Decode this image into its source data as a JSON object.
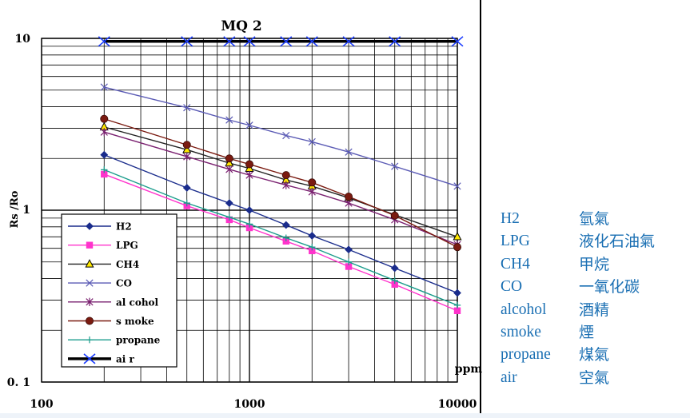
{
  "chart_data": {
    "type": "line",
    "title": "MQ 2",
    "ylabel": "Rs /Ro",
    "xunit": "ppm",
    "xscale": "log",
    "yscale": "log",
    "xlim": [
      100,
      10000
    ],
    "ylim": [
      0.1,
      10
    ],
    "xticks": [
      "100",
      "1000",
      "10000"
    ],
    "yticks": [
      "0. 1",
      "1",
      "10"
    ],
    "grid": true,
    "legend_position": "lower-left",
    "x": [
      200,
      500,
      800,
      1000,
      1500,
      2000,
      3000,
      5000,
      10000
    ],
    "series": [
      {
        "name": "H2",
        "color": "#1a2c8c",
        "marker": "diamond",
        "values": [
          2.1,
          1.35,
          1.1,
          1.0,
          0.82,
          0.71,
          0.59,
          0.46,
          0.33
        ]
      },
      {
        "name": "LPG",
        "color": "#ff33cc",
        "marker": "square",
        "values": [
          1.62,
          1.06,
          0.88,
          0.79,
          0.66,
          0.58,
          0.47,
          0.37,
          0.26
        ]
      },
      {
        "name": "CH4",
        "color": "#222222",
        "marker": "triangle",
        "values": [
          3.05,
          2.25,
          1.88,
          1.75,
          1.5,
          1.38,
          1.18,
          0.94,
          0.7
        ]
      },
      {
        "name": "CO",
        "color": "#5b5bb5",
        "marker": "x",
        "values": [
          5.2,
          3.95,
          3.35,
          3.12,
          2.72,
          2.5,
          2.18,
          1.8,
          1.38
        ]
      },
      {
        "name": "al cohol",
        "color": "#7a2070",
        "marker": "star",
        "values": [
          2.85,
          2.05,
          1.73,
          1.6,
          1.4,
          1.28,
          1.1,
          0.88,
          0.63
        ]
      },
      {
        "name": "s moke",
        "color": "#7a1a10",
        "marker": "circle",
        "values": [
          3.4,
          2.4,
          2.0,
          1.85,
          1.6,
          1.45,
          1.2,
          0.93,
          0.61
        ]
      },
      {
        "name": "propane",
        "color": "#1a9c8c",
        "marker": "plus",
        "values": [
          1.72,
          1.1,
          0.91,
          0.83,
          0.69,
          0.61,
          0.5,
          0.39,
          0.28
        ]
      },
      {
        "name": "ai r",
        "color": "#1a3cff",
        "marker": "bigx",
        "line": "#000000",
        "values": [
          9.6,
          9.6,
          9.6,
          9.6,
          9.6,
          9.6,
          9.6,
          9.6,
          9.6
        ]
      }
    ]
  },
  "gloss": [
    {
      "en": "H2",
      "zh": "氫氣"
    },
    {
      "en": "LPG",
      "zh": "液化石油氣"
    },
    {
      "en": "CH4",
      "zh": "甲烷"
    },
    {
      "en": "CO",
      "zh": "一氧化碳"
    },
    {
      "en": "alcohol",
      "zh": "酒精"
    },
    {
      "en": "smoke",
      "zh": "煙"
    },
    {
      "en": "propane",
      "zh": "煤氣"
    },
    {
      "en": "air",
      "zh": "空氣"
    }
  ]
}
